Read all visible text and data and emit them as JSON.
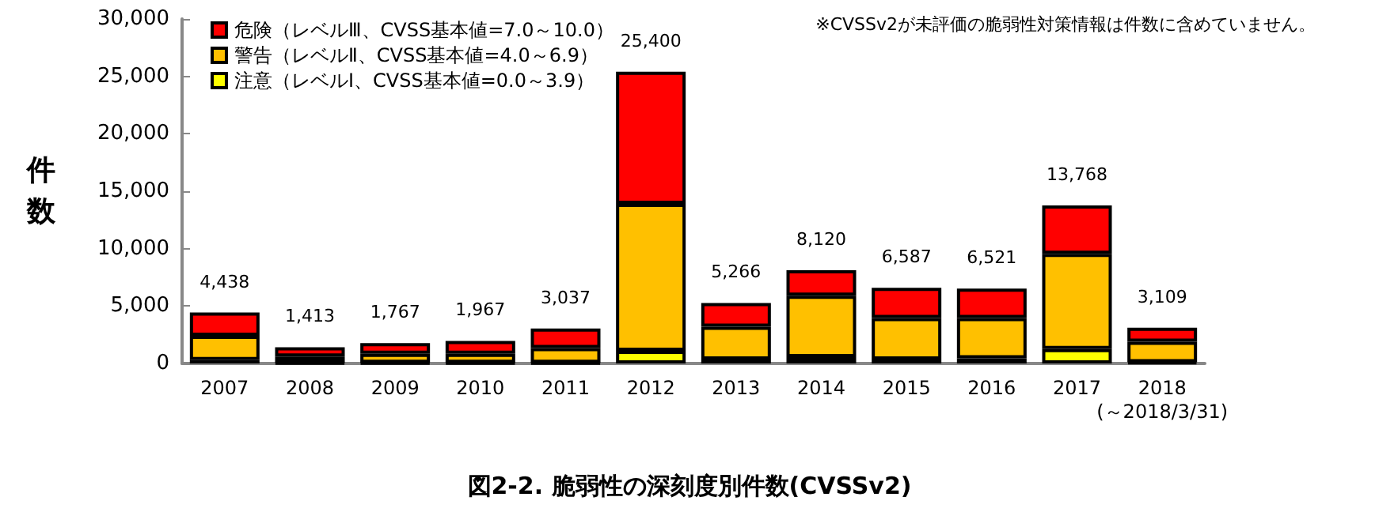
{
  "chart_data": {
    "type": "bar",
    "stacked": true,
    "title": "図2-2. 脆弱性の深刻度別件数(CVSSv2)",
    "ylabel": "件数",
    "annotations": [
      "※CVSSv2が未評価の脆弱性対策情報は件数に含めていません。"
    ],
    "categories": [
      "2007",
      "2008",
      "2009",
      "2010",
      "2011",
      "2012",
      "2013",
      "2014",
      "2015",
      "2016",
      "2017",
      "2018\n(～2018/3/31)"
    ],
    "series": [
      {
        "name": "注意（レベルⅠ、CVSS基本値=0.0～3.9）",
        "color": "#ffff00",
        "values": [
          300,
          50,
          50,
          50,
          50,
          1100,
          350,
          550,
          350,
          450,
          1250,
          100
        ]
      },
      {
        "name": "警告（レベルⅡ、CVSS基本値=4.0～6.9）",
        "color": "#ffc000",
        "values": [
          2100,
          550,
          800,
          800,
          1300,
          12800,
          2850,
          5350,
          3600,
          3500,
          8300,
          1800
        ]
      },
      {
        "name": "危険（レベルⅢ、CVSS基本値=7.0～10.0）",
        "color": "#ff0000",
        "values": [
          2038,
          813,
          917,
          1117,
          1687,
          11500,
          2066,
          2220,
          2637,
          2571,
          4218,
          1209
        ]
      }
    ],
    "totals": [
      "4,438",
      "1,413",
      "1,767",
      "1,967",
      "3,037",
      "25,400",
      "5,266",
      "8,120",
      "6,587",
      "6,521",
      "13,768",
      "3,109"
    ],
    "ylim": [
      0,
      30000
    ],
    "yticks": [
      0,
      {
        "value": 5000,
        "label": "5,000"
      },
      {
        "value": 10000,
        "label": "10,000"
      },
      {
        "value": 15000,
        "label": "15,000"
      },
      {
        "value": 20000,
        "label": "20,000"
      },
      {
        "value": 25000,
        "label": "25,000"
      },
      {
        "value": 30000,
        "label": "30,000"
      }
    ],
    "grid": false,
    "legend": "top left"
  }
}
